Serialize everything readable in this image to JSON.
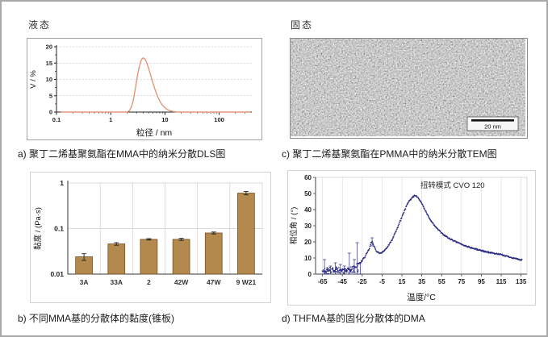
{
  "figure": {
    "panels": {
      "a": {
        "state_label": "液态",
        "caption": "a) 聚丁二烯基聚氨酯在MMA中的纳米分散DLS图"
      },
      "b": {
        "caption": "b) 不同MMA基的分散体的黏度(锥板)"
      },
      "c": {
        "state_label": "固态",
        "caption": "c) 聚丁二烯基聚氨酯在PMMA中的纳米分散TEM图",
        "scale_bar": "20 nm"
      },
      "d": {
        "caption": "d) THFMA基的固化分散体的DMA"
      }
    }
  },
  "chart_data": [
    {
      "id": "dls",
      "type": "line",
      "panel": "a",
      "xlabel": "粒径 / nm",
      "ylabel": "V / %",
      "x_scale": "log",
      "xlim": [
        0.1,
        400
      ],
      "x_ticks": [
        0.1,
        1,
        10,
        100
      ],
      "ylim": [
        0,
        20
      ],
      "y_ticks": [
        0,
        5,
        10,
        15,
        20
      ],
      "grid": "horizontal-dashed",
      "legend": "none",
      "line_color": "#e29679",
      "points": [
        [
          0.12,
          0
        ],
        [
          1.2,
          0
        ],
        [
          2,
          0
        ],
        [
          2.2,
          0.4
        ],
        [
          2.4,
          1.5
        ],
        [
          2.6,
          3.5
        ],
        [
          2.8,
          6.5
        ],
        [
          3,
          9.5
        ],
        [
          3.2,
          12.2
        ],
        [
          3.4,
          14.2
        ],
        [
          3.6,
          15.6
        ],
        [
          3.8,
          16.3
        ],
        [
          4,
          16.6
        ],
        [
          4.3,
          16.2
        ],
        [
          4.6,
          15.2
        ],
        [
          5,
          13.4
        ],
        [
          5.4,
          11.5
        ],
        [
          5.8,
          9.7
        ],
        [
          6.3,
          7.8
        ],
        [
          6.9,
          5.9
        ],
        [
          7.5,
          4.4
        ],
        [
          8.2,
          3.1
        ],
        [
          9,
          2.1
        ],
        [
          10,
          1.3
        ],
        [
          11,
          0.8
        ],
        [
          12.5,
          0.4
        ],
        [
          14,
          0.2
        ],
        [
          16,
          0.07
        ],
        [
          18,
          0
        ],
        [
          30,
          0
        ],
        [
          380,
          0
        ]
      ]
    },
    {
      "id": "viscosity",
      "type": "bar",
      "panel": "b",
      "ylabel": "黏度 / (Pa·s)",
      "y_scale": "log",
      "ylim": [
        0.01,
        1
      ],
      "y_ticks": [
        0.01,
        0.1,
        1
      ],
      "categories": [
        "3A",
        "33A",
        "2",
        "42W",
        "47W",
        "9 W21"
      ],
      "values": [
        0.024,
        0.046,
        0.058,
        0.058,
        0.08,
        0.6
      ],
      "errors": [
        0.004,
        0.003,
        0.002,
        0.003,
        0.004,
        0.05
      ],
      "grid": "both-light",
      "legend": "none",
      "bar_color": "#b3894d",
      "bar_stroke": "#6e5226"
    },
    {
      "id": "dma",
      "type": "scatter",
      "panel": "d",
      "xlabel": "温度/°C",
      "ylabel": "相位角 / (°)",
      "xlim": [
        -72,
        141
      ],
      "x_ticks": [
        -65,
        -45,
        -25,
        -5,
        15,
        35,
        55,
        75,
        95,
        115,
        135
      ],
      "ylim": [
        0,
        60
      ],
      "y_ticks": [
        0,
        10,
        20,
        30,
        40,
        50,
        60
      ],
      "annotation": "扭转模式 CVO 120",
      "grid": "vertical-light",
      "legend": "none",
      "point_color": "#2c2c85",
      "anchors": [
        [
          -65,
          2.5
        ],
        [
          -62,
          2
        ],
        [
          -58,
          1.8
        ],
        [
          -55,
          2.2
        ],
        [
          -52,
          2
        ],
        [
          -50,
          2.5
        ],
        [
          -47,
          2
        ],
        [
          -45,
          2.3
        ],
        [
          -42,
          2.5
        ],
        [
          -40,
          3
        ],
        [
          -38,
          3.2
        ],
        [
          -35,
          3.5
        ],
        [
          -32,
          4.5
        ],
        [
          -30,
          5.5
        ],
        [
          -28,
          6.5
        ],
        [
          -26,
          8
        ],
        [
          -24,
          9.5
        ],
        [
          -22,
          11
        ],
        [
          -20,
          13
        ],
        [
          -18,
          16
        ],
        [
          -16,
          19
        ],
        [
          -15,
          20
        ],
        [
          -14,
          19
        ],
        [
          -12,
          15.5
        ],
        [
          -10,
          13.8
        ],
        [
          -8,
          13
        ],
        [
          -6,
          13.2
        ],
        [
          -4,
          14
        ],
        [
          -2,
          15
        ],
        [
          0,
          16.5
        ],
        [
          3,
          19
        ],
        [
          6,
          22.5
        ],
        [
          9,
          26.5
        ],
        [
          12,
          31
        ],
        [
          15,
          35.5
        ],
        [
          18,
          40
        ],
        [
          21,
          44
        ],
        [
          24,
          46.5
        ],
        [
          26,
          48
        ],
        [
          28,
          48.7
        ],
        [
          30,
          48.3
        ],
        [
          32,
          47
        ],
        [
          34,
          45
        ],
        [
          36,
          42.5
        ],
        [
          38,
          40
        ],
        [
          40,
          37.5
        ],
        [
          43,
          34.5
        ],
        [
          46,
          31.5
        ],
        [
          50,
          28.5
        ],
        [
          54,
          26
        ],
        [
          58,
          24
        ],
        [
          62,
          22.3
        ],
        [
          66,
          21
        ],
        [
          70,
          19.8
        ],
        [
          75,
          18.5
        ],
        [
          80,
          17.3
        ],
        [
          85,
          16.3
        ],
        [
          90,
          15.4
        ],
        [
          95,
          14.6
        ],
        [
          100,
          13.8
        ],
        [
          105,
          13.2
        ],
        [
          110,
          12.6
        ],
        [
          115,
          12
        ],
        [
          120,
          11.2
        ],
        [
          125,
          10.4
        ],
        [
          130,
          9.6
        ],
        [
          135,
          8.8
        ]
      ],
      "spikes": [
        [
          -63,
          0,
          9
        ],
        [
          -57,
          0,
          5
        ],
        [
          -52,
          0,
          7
        ],
        [
          -47,
          0,
          6
        ],
        [
          -43,
          0,
          5
        ],
        [
          -38,
          0,
          13
        ],
        [
          -33,
          1,
          9
        ],
        [
          -30,
          0,
          19.5
        ],
        [
          -27,
          0,
          7
        ],
        [
          -15,
          17.5,
          22.5
        ]
      ]
    }
  ]
}
